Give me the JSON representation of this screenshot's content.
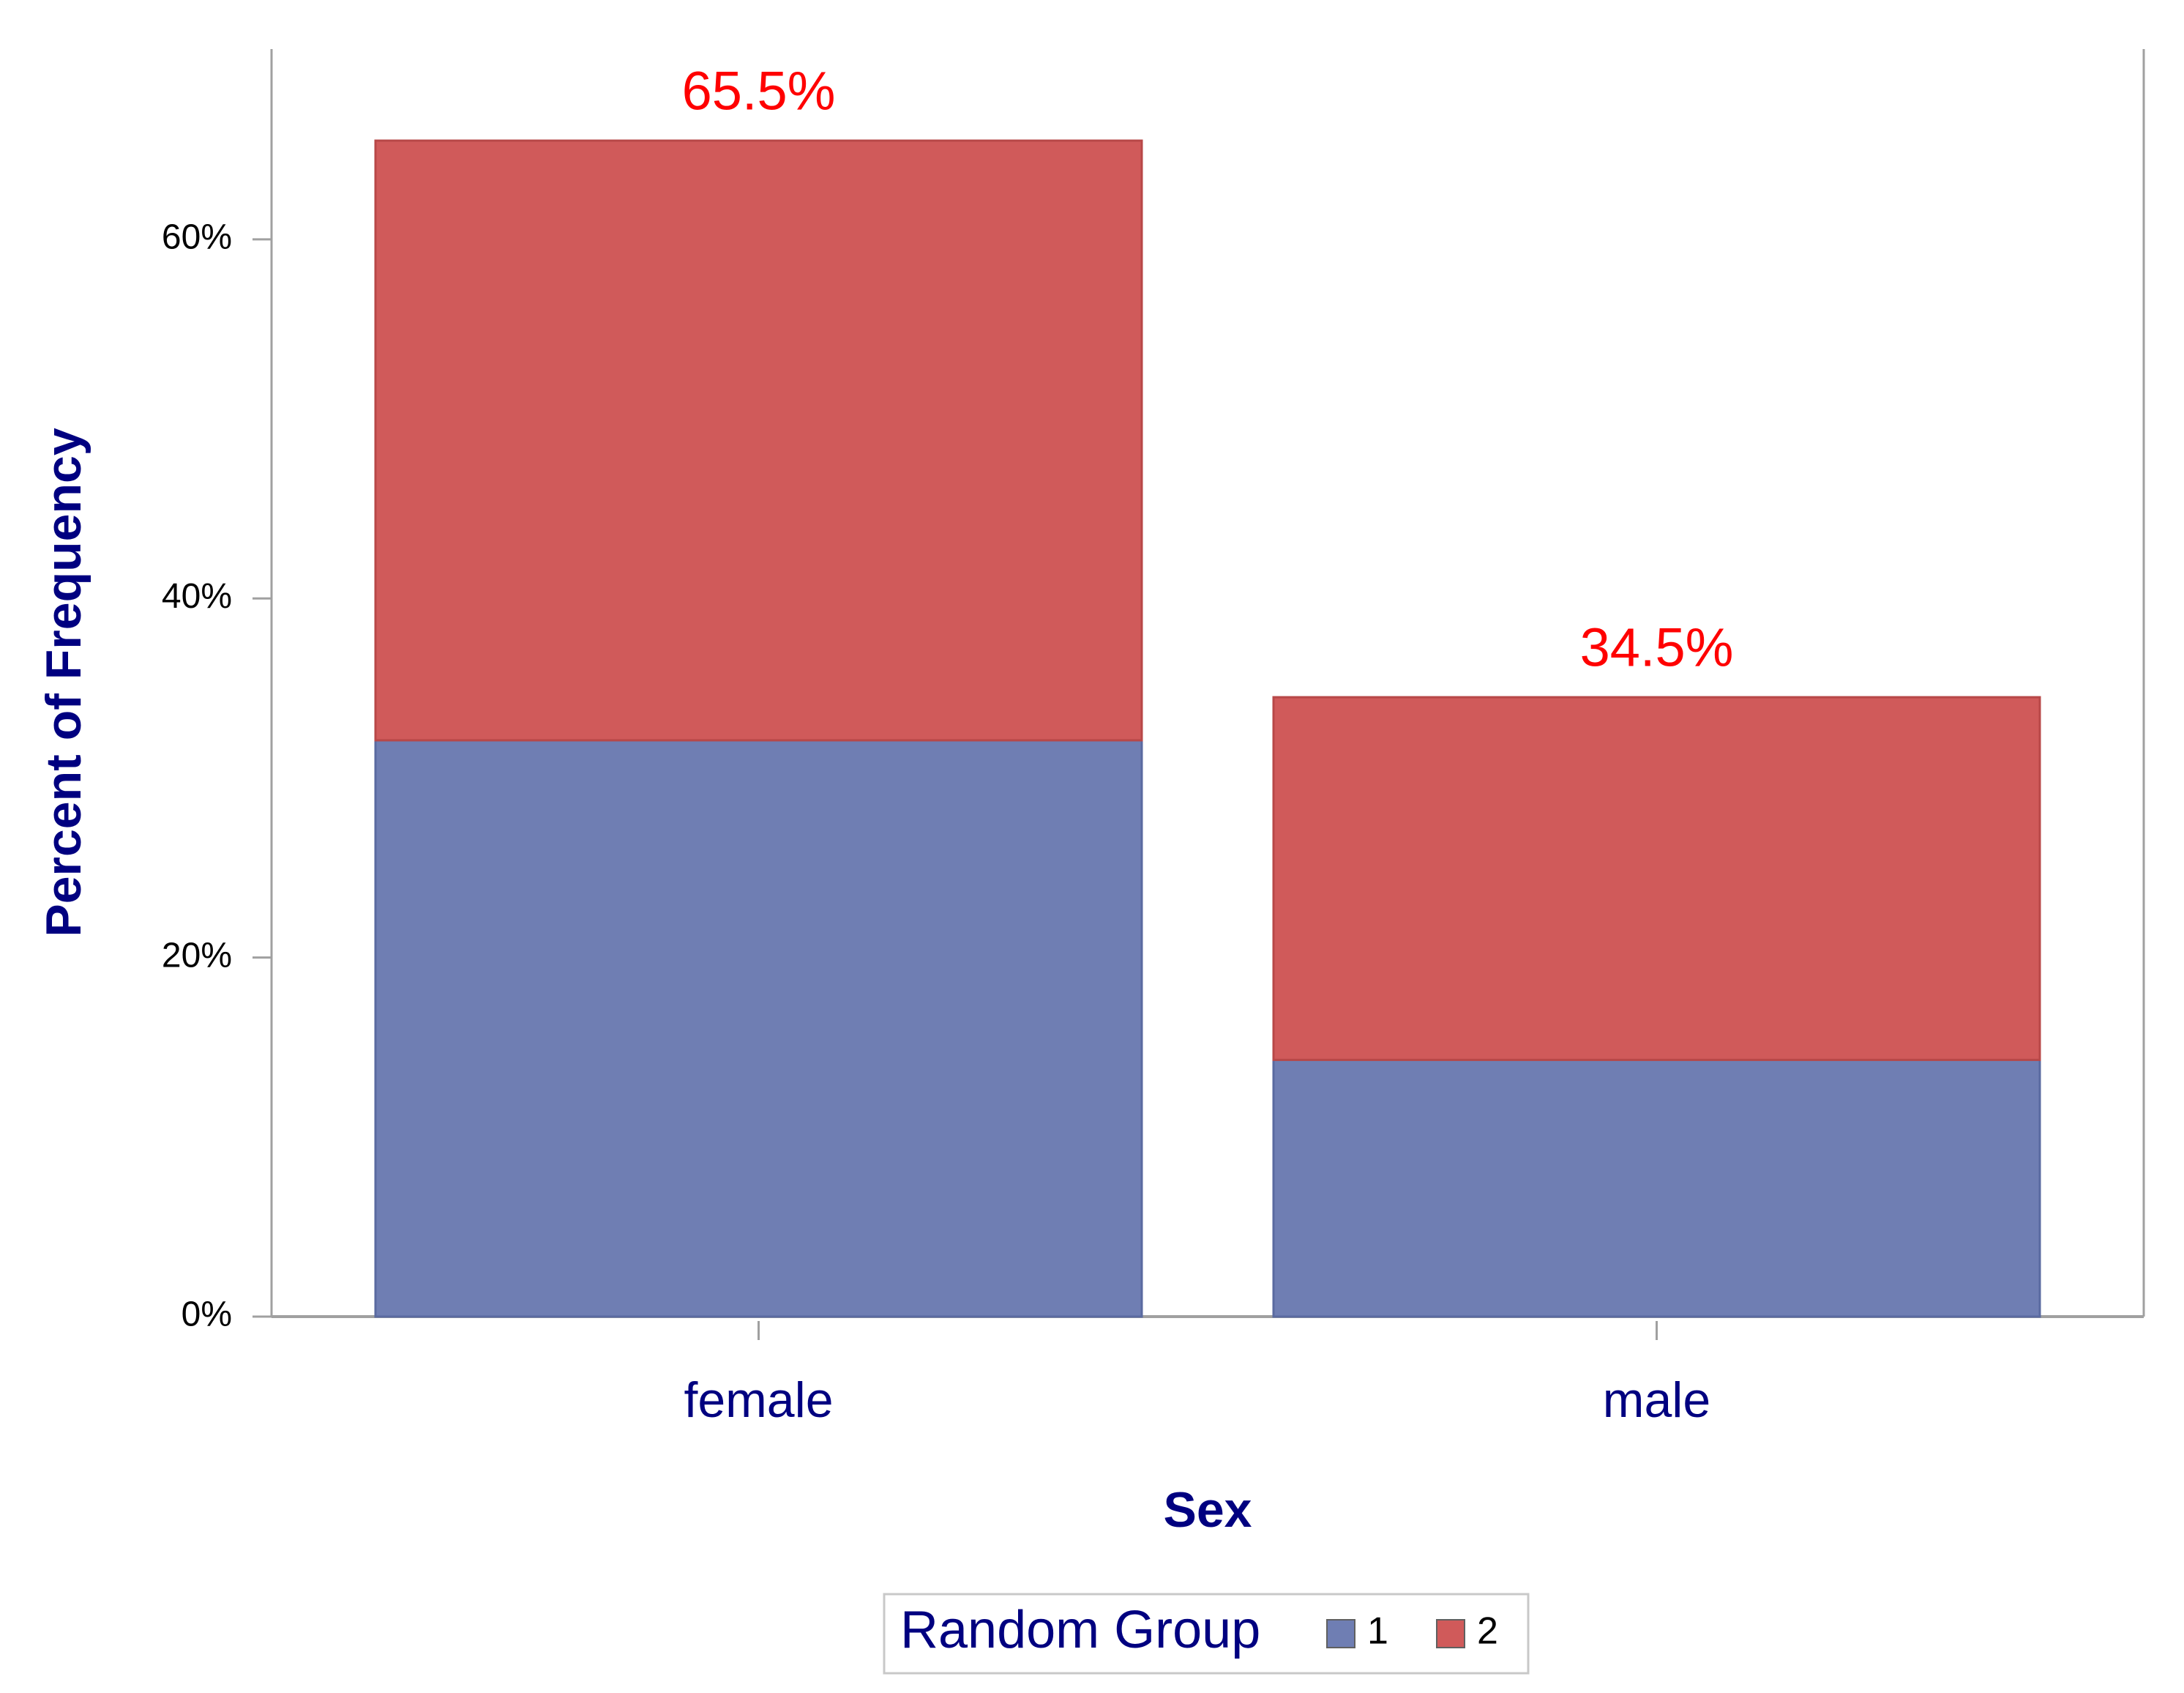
{
  "chart_data": {
    "type": "stacked_bar",
    "x_label": "Sex",
    "y_label": "Percent of Frequency",
    "categories": [
      "female",
      "male"
    ],
    "series": [
      {
        "name": "1",
        "color": "#6f7eb3",
        "values": [
          32.1,
          14.3
        ]
      },
      {
        "name": "2",
        "color": "#d05a5a",
        "values": [
          33.4,
          20.2
        ]
      }
    ],
    "totals": [
      65.5,
      34.5
    ],
    "total_labels": [
      "65.5%",
      "34.5%"
    ],
    "total_label_color": "#ff0000",
    "legend_title": "Random Group",
    "legend_position": "bottom",
    "ylim": [
      0,
      70.6
    ],
    "yticks": [
      {
        "value": 0,
        "label": "0%"
      },
      {
        "value": 20,
        "label": "20%"
      },
      {
        "value": 40,
        "label": "40%"
      },
      {
        "value": 60,
        "label": "60%"
      }
    ]
  }
}
